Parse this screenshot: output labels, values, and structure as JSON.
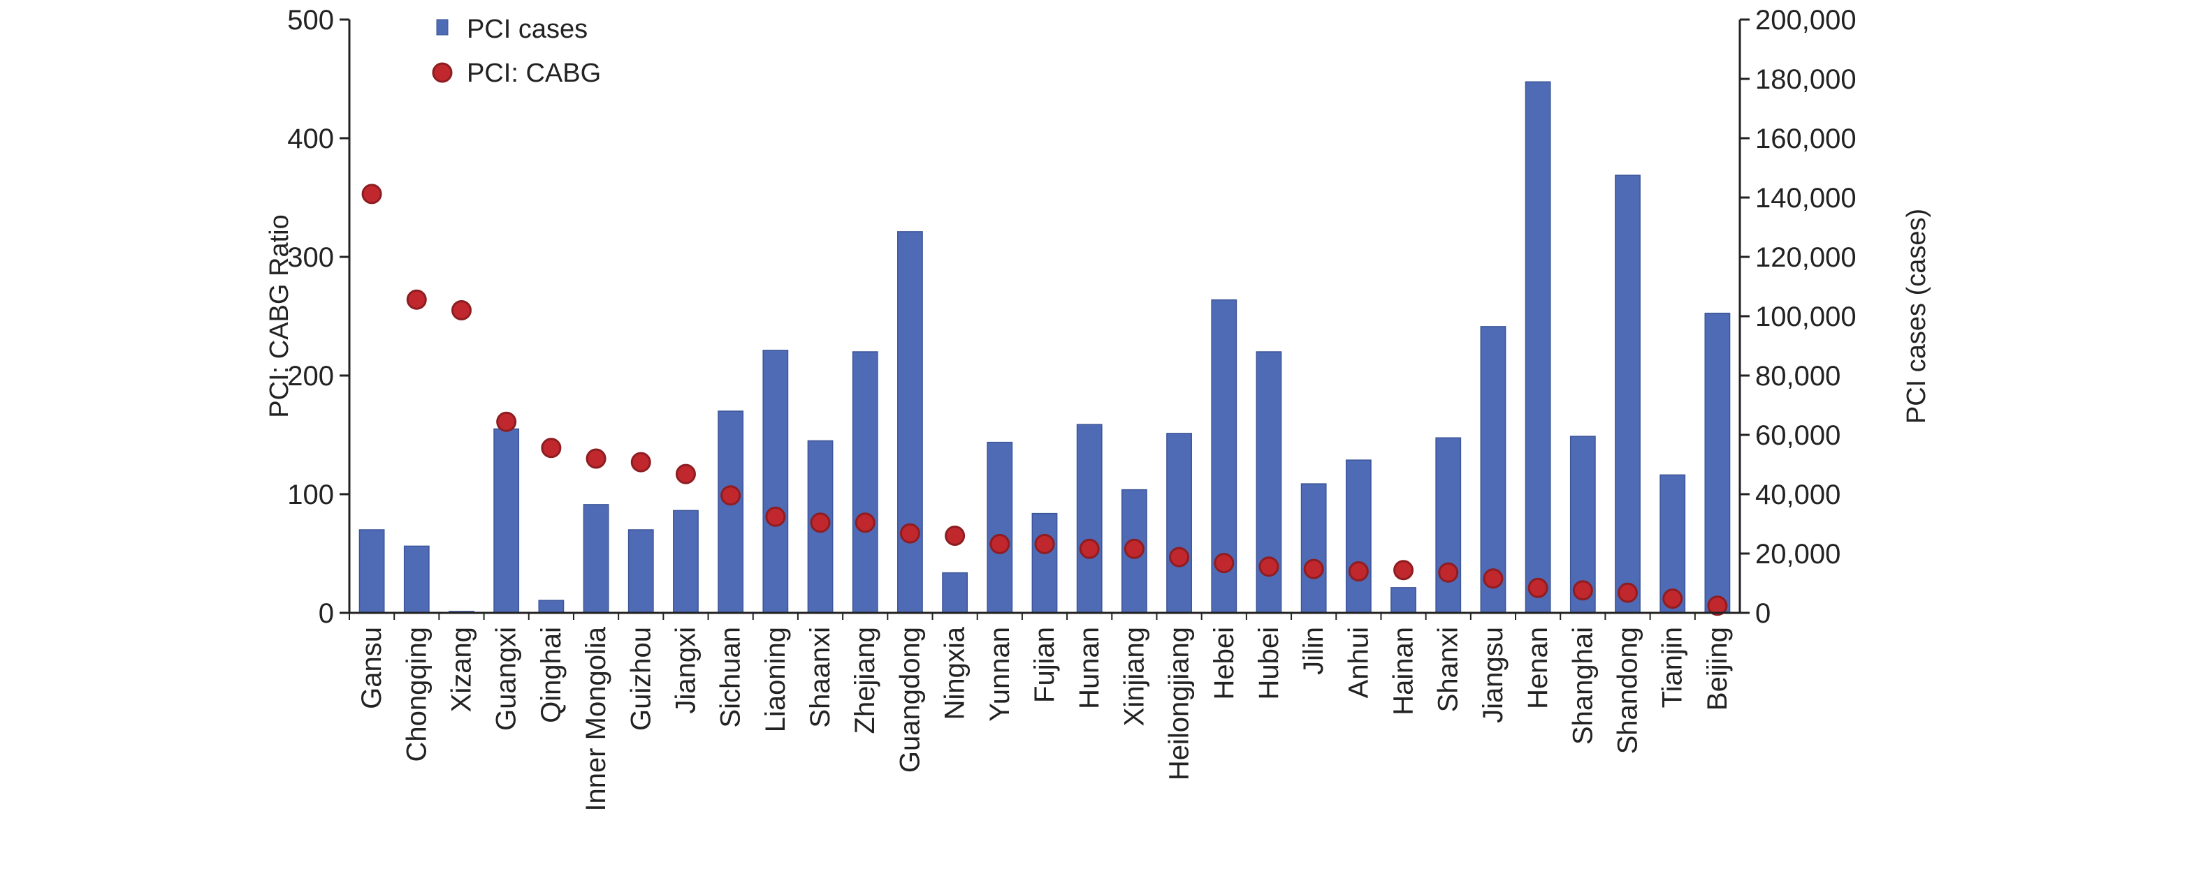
{
  "colors": {
    "bar": "#4f6bb6",
    "bar_edge": "#3b5598",
    "dot": "#c0282e",
    "dot_edge": "#8e1d21",
    "axis": "#222222"
  },
  "chart_data": {
    "type": "bar",
    "title": "",
    "xlabel": "",
    "ylabel_left": "PCI: CABG Ratio",
    "ylabel_right": "PCI cases (cases)",
    "ylim_left": [
      0,
      500
    ],
    "ylim_right": [
      0,
      200000
    ],
    "yticks_left": [
      "0",
      "100",
      "200",
      "300",
      "400",
      "500"
    ],
    "yticks_right": [
      "0",
      "20,000",
      "40,000",
      "60,000",
      "80,000",
      "100,000",
      "120,000",
      "140,000",
      "160,000",
      "180,000",
      "200,000"
    ],
    "grid": false,
    "legend_position": "top-left",
    "categories": [
      "Gansu",
      "Chongqing",
      "Xizang",
      "Guangxi",
      "Qinghai",
      "Inner Mongolia",
      "Guizhou",
      "Jiangxi",
      "Sichuan",
      "Liaoning",
      "Shaanxi",
      "Zhejiang",
      "Guangdong",
      "Ningxia",
      "Yunnan",
      "Fujian",
      "Hunan",
      "Xinjiang",
      "Heilongjiang",
      "Hebei",
      "Hubei",
      "Jilin",
      "Anhui",
      "Hainan",
      "Shanxi",
      "Jiangsu",
      "Henan",
      "Shanghai",
      "Shandong",
      "Tianjin",
      "Beijing"
    ],
    "series": [
      {
        "name": "PCI cases",
        "type": "bar",
        "axis": "right",
        "values": [
          28000,
          22500,
          500,
          62000,
          4200,
          36500,
          28000,
          34500,
          68000,
          88500,
          58000,
          88000,
          128500,
          13500,
          57500,
          33500,
          63500,
          41500,
          60500,
          105500,
          88000,
          43500,
          51500,
          8500,
          59000,
          96500,
          179000,
          59500,
          147500,
          46500,
          101000
        ]
      },
      {
        "name": "PCI: CABG",
        "type": "scatter",
        "axis": "left",
        "values": [
          353,
          264,
          255,
          161,
          139,
          130,
          127,
          117,
          99,
          81,
          76,
          76,
          67,
          65,
          58,
          58,
          54,
          54,
          47,
          42,
          39,
          37,
          35,
          36,
          34,
          29,
          21,
          19,
          17,
          12,
          6
        ]
      }
    ]
  }
}
